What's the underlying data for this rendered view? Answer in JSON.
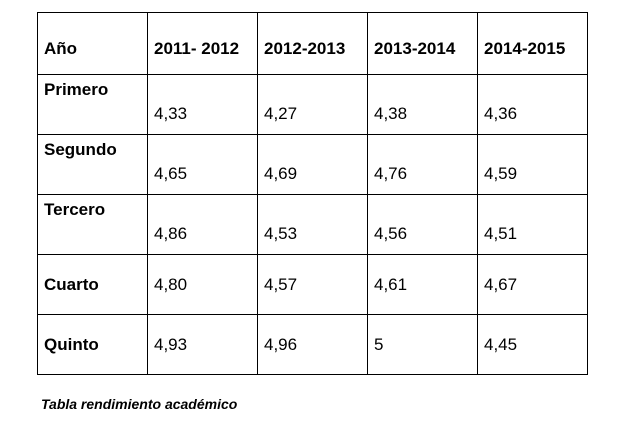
{
  "table": {
    "headers": [
      "Año",
      "2011- 2012",
      "2012-2013",
      "2013-2014",
      "2014-2015"
    ],
    "rows": [
      {
        "label": "Primero",
        "values": [
          "4,33",
          "4,27",
          "4,38",
          "4,36"
        ]
      },
      {
        "label": "Segundo",
        "values": [
          "4,65",
          "4,69",
          "4,76",
          "4,59"
        ]
      },
      {
        "label": "Tercero",
        "values": [
          "4,86",
          "4,53",
          "4,56",
          "4,51"
        ]
      },
      {
        "label": "Cuarto",
        "values": [
          "4,80",
          "4,57",
          "4,61",
          "4,67"
        ]
      },
      {
        "label": "Quinto",
        "values": [
          "4,93",
          "4,96",
          "5",
          "4,45"
        ]
      }
    ]
  },
  "caption": "Tabla rendimiento académico"
}
